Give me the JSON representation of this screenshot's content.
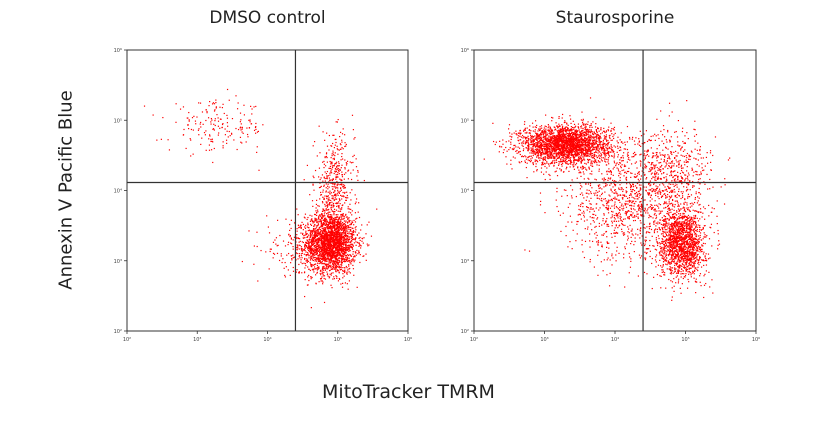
{
  "chart_data": [
    {
      "type": "scatter",
      "title": "DMSO control",
      "xlabel": "MitoTracker TMRM",
      "ylabel": "Annexin V Pacific Blue",
      "xscale": "log",
      "yscale": "log",
      "xlim": [
        100,
        1000000
      ],
      "ylim": [
        100,
        1000000
      ],
      "x_ticks": [
        "10²",
        "10³",
        "10⁴",
        "10⁵",
        "10⁶"
      ],
      "y_ticks": [
        "10²",
        "10³",
        "10⁴",
        "10⁵",
        "10⁶"
      ],
      "quadrant_gate": {
        "x": 25000,
        "y": 13000
      },
      "point_color": "#ff0000",
      "populations": [
        {
          "center_x": 80000,
          "center_y": 1800,
          "spread_x": 0.18,
          "spread_y": 0.22,
          "count": 2400
        },
        {
          "center_x": 90000,
          "center_y": 12000,
          "spread_x": 0.14,
          "spread_y": 0.35,
          "count": 450
        },
        {
          "center_x": 2000,
          "center_y": 80000,
          "spread_x": 0.35,
          "spread_y": 0.18,
          "count": 180
        },
        {
          "center_x": 30000,
          "center_y": 1500,
          "spread_x": 0.25,
          "spread_y": 0.2,
          "count": 200
        }
      ]
    },
    {
      "type": "scatter",
      "title": "Staurosporine",
      "xlabel": "MitoTracker TMRM",
      "ylabel": "Annexin V Pacific Blue",
      "xscale": "log",
      "yscale": "log",
      "xlim": [
        100,
        1000000
      ],
      "ylim": [
        100,
        1000000
      ],
      "x_ticks": [
        "10²",
        "10³",
        "10⁴",
        "10⁵",
        "10⁶"
      ],
      "y_ticks": [
        "10²",
        "10³",
        "10⁴",
        "10⁵",
        "10⁶"
      ],
      "quadrant_gate": {
        "x": 25000,
        "y": 13000
      },
      "point_color": "#ff0000",
      "populations": [
        {
          "center_x": 2000,
          "center_y": 45000,
          "spread_x": 0.32,
          "spread_y": 0.14,
          "count": 2600
        },
        {
          "center_x": 90000,
          "center_y": 1800,
          "spread_x": 0.16,
          "spread_y": 0.25,
          "count": 1600
        },
        {
          "center_x": 15000,
          "center_y": 6000,
          "spread_x": 0.45,
          "spread_y": 0.4,
          "count": 1000
        },
        {
          "center_x": 60000,
          "center_y": 20000,
          "spread_x": 0.3,
          "spread_y": 0.3,
          "count": 500
        }
      ]
    }
  ]
}
